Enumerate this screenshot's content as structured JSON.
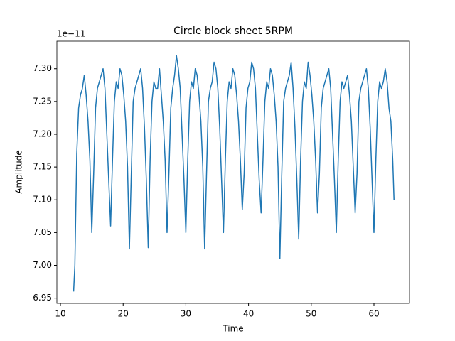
{
  "chart_data": {
    "type": "line",
    "title": "Circle block sheet 5RPM",
    "x_label": "Time",
    "y_label": "Amplitude",
    "y_offset_label": "1e−11",
    "x": [
      12.1,
      12.3,
      12.6,
      12.9,
      13.2,
      13.5,
      13.8,
      14.1,
      14.4,
      14.7,
      15.0,
      15.3,
      15.6,
      15.9,
      16.2,
      16.5,
      16.8,
      17.1,
      17.4,
      17.7,
      18.0,
      18.3,
      18.6,
      18.9,
      19.2,
      19.5,
      19.8,
      20.1,
      20.4,
      20.7,
      21.0,
      21.3,
      21.6,
      21.9,
      22.2,
      22.5,
      22.8,
      23.1,
      23.4,
      23.7,
      24.0,
      24.3,
      24.6,
      24.9,
      25.2,
      25.5,
      25.8,
      26.1,
      26.4,
      26.7,
      27.0,
      27.3,
      27.6,
      27.9,
      28.2,
      28.5,
      28.8,
      29.1,
      29.4,
      29.7,
      30.0,
      30.3,
      30.6,
      30.9,
      31.2,
      31.5,
      31.8,
      32.1,
      32.4,
      32.7,
      33.0,
      33.3,
      33.6,
      33.9,
      34.2,
      34.5,
      34.8,
      35.1,
      35.4,
      35.7,
      36.0,
      36.3,
      36.6,
      36.9,
      37.2,
      37.5,
      37.8,
      38.1,
      38.4,
      38.7,
      39.0,
      39.3,
      39.6,
      39.9,
      40.2,
      40.5,
      40.8,
      41.1,
      41.4,
      41.7,
      42.0,
      42.3,
      42.6,
      42.9,
      43.2,
      43.5,
      43.8,
      44.1,
      44.4,
      44.7,
      45.0,
      45.3,
      45.6,
      45.9,
      46.2,
      46.5,
      46.8,
      47.1,
      47.4,
      47.7,
      48.0,
      48.3,
      48.6,
      48.9,
      49.2,
      49.5,
      49.8,
      50.1,
      50.4,
      50.7,
      51.0,
      51.3,
      51.6,
      51.9,
      52.2,
      52.5,
      52.8,
      53.1,
      53.4,
      53.7,
      54.0,
      54.3,
      54.6,
      54.9,
      55.2,
      55.5,
      55.8,
      56.1,
      56.4,
      56.7,
      57.0,
      57.3,
      57.6,
      57.9,
      58.2,
      58.5,
      58.8,
      59.1,
      59.4,
      59.7,
      60.0,
      60.3,
      60.6,
      60.9,
      61.2,
      61.5,
      61.8,
      62.1,
      62.4,
      62.7,
      63.0,
      63.2
    ],
    "series": [
      {
        "name": "Amplitude",
        "color": "#1f77b4",
        "values": [
          6.96,
          7.0,
          7.17,
          7.24,
          7.26,
          7.27,
          7.29,
          7.26,
          7.22,
          7.16,
          7.05,
          7.14,
          7.24,
          7.27,
          7.28,
          7.29,
          7.3,
          7.27,
          7.2,
          7.13,
          7.06,
          7.16,
          7.25,
          7.28,
          7.27,
          7.3,
          7.29,
          7.26,
          7.22,
          7.15,
          7.025,
          7.14,
          7.25,
          7.27,
          7.28,
          7.29,
          7.3,
          7.27,
          7.21,
          7.13,
          7.027,
          7.16,
          7.25,
          7.28,
          7.27,
          7.27,
          7.3,
          7.26,
          7.22,
          7.16,
          7.05,
          7.14,
          7.24,
          7.27,
          7.29,
          7.32,
          7.3,
          7.27,
          7.2,
          7.13,
          7.05,
          7.16,
          7.25,
          7.28,
          7.27,
          7.3,
          7.29,
          7.26,
          7.22,
          7.15,
          7.025,
          7.14,
          7.25,
          7.27,
          7.28,
          7.31,
          7.3,
          7.27,
          7.21,
          7.13,
          7.05,
          7.16,
          7.25,
          7.28,
          7.27,
          7.3,
          7.29,
          7.26,
          7.22,
          7.16,
          7.085,
          7.14,
          7.24,
          7.27,
          7.28,
          7.31,
          7.3,
          7.27,
          7.2,
          7.13,
          7.08,
          7.16,
          7.25,
          7.28,
          7.27,
          7.3,
          7.29,
          7.26,
          7.22,
          7.15,
          7.01,
          7.14,
          7.25,
          7.27,
          7.28,
          7.29,
          7.31,
          7.27,
          7.21,
          7.13,
          7.04,
          7.16,
          7.25,
          7.28,
          7.27,
          7.31,
          7.29,
          7.26,
          7.22,
          7.16,
          7.08,
          7.14,
          7.24,
          7.27,
          7.28,
          7.29,
          7.3,
          7.27,
          7.2,
          7.13,
          7.05,
          7.16,
          7.25,
          7.28,
          7.27,
          7.28,
          7.29,
          7.26,
          7.22,
          7.15,
          7.08,
          7.14,
          7.25,
          7.27,
          7.28,
          7.29,
          7.3,
          7.27,
          7.21,
          7.13,
          7.05,
          7.16,
          7.25,
          7.28,
          7.27,
          7.28,
          7.3,
          7.28,
          7.24,
          7.22,
          7.16,
          7.1
        ]
      }
    ],
    "xlim": [
      9.43,
      65.67
    ],
    "ylim": [
      6.942,
      7.342
    ],
    "xticks": [
      10,
      20,
      30,
      40,
      50,
      60
    ],
    "yticks": [
      {
        "value": 6.95,
        "label": "6.95"
      },
      {
        "value": 7.0,
        "label": "7.00"
      },
      {
        "value": 7.05,
        "label": "7.05"
      },
      {
        "value": 7.1,
        "label": "7.10"
      },
      {
        "value": 7.15,
        "label": "7.15"
      },
      {
        "value": 7.2,
        "label": "7.20"
      },
      {
        "value": 7.25,
        "label": "7.25"
      },
      {
        "value": 7.3,
        "label": "7.30"
      }
    ],
    "grid": false
  }
}
